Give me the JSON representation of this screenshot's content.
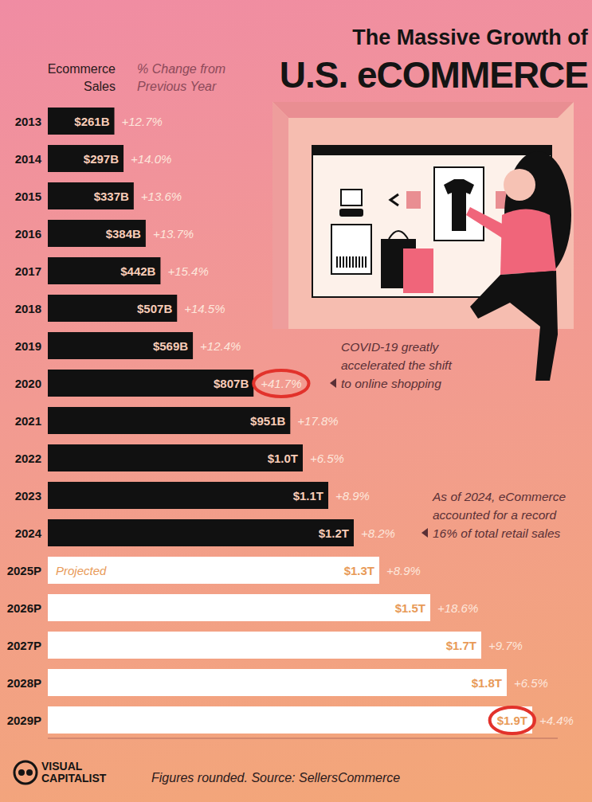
{
  "chart_data": {
    "type": "bar",
    "orientation": "horizontal",
    "subtitle": "The Massive Growth of",
    "title": "U.S. eCOMMERCE",
    "headers": [
      [
        "Ecommerce",
        "Sales"
      ],
      [
        "% Change from",
        "Previous Year"
      ]
    ],
    "categories": [
      "2013",
      "2014",
      "2015",
      "2016",
      "2017",
      "2018",
      "2019",
      "2020",
      "2021",
      "2022",
      "2023",
      "2024",
      "2025P",
      "2026P",
      "2027P",
      "2028P",
      "2029P"
    ],
    "values": [
      261,
      297,
      337,
      384,
      442,
      507,
      569,
      807,
      951,
      1000,
      1100,
      1200,
      1300,
      1500,
      1700,
      1800,
      1900
    ],
    "value_labels": [
      "$261B",
      "$297B",
      "$337B",
      "$384B",
      "$442B",
      "$507B",
      "$569B",
      "$807B",
      "$951B",
      "$1.0T",
      "$1.1T",
      "$1.2T",
      "$1.3T",
      "$1.5T",
      "$1.7T",
      "$1.8T",
      "$1.9T"
    ],
    "changes": [
      12.7,
      14.0,
      13.6,
      13.7,
      15.4,
      14.5,
      12.4,
      41.7,
      17.8,
      6.5,
      8.9,
      8.2,
      8.9,
      18.6,
      9.7,
      6.5,
      4.4
    ],
    "change_labels": [
      "+12.7%",
      "+14.0%",
      "+13.6%",
      "+13.7%",
      "+15.4%",
      "+14.5%",
      "+12.4%",
      "+41.7%",
      "+17.8%",
      "+6.5%",
      "+8.9%",
      "+8.2%",
      "+8.9%",
      "+18.6%",
      "+9.7%",
      "+6.5%",
      "+4.4%"
    ],
    "colors": [
      "#111111",
      "#111111",
      "#111111",
      "#111111",
      "#111111",
      "#111111",
      "#111111",
      "#111111",
      "#111111",
      "#111111",
      "#111111",
      "#111111",
      "#ffffff",
      "#ffffff",
      "#ffffff",
      "#ffffff",
      "#ffffff"
    ],
    "xlim": [
      0,
      2000
    ],
    "tick_labels": false,
    "data_labels": true,
    "projected_label": "Projected",
    "annotations": [
      [
        "COVID-19 greatly",
        "accelerated the shift",
        "to online shopping"
      ],
      [
        "As of 2024, eCommerce",
        "accounted for a record",
        "16% of total retail sales"
      ]
    ],
    "source": "Figures rounded. Source: SellersCommerce",
    "brand": [
      "VISUAL",
      "CAPITALIST"
    ]
  }
}
